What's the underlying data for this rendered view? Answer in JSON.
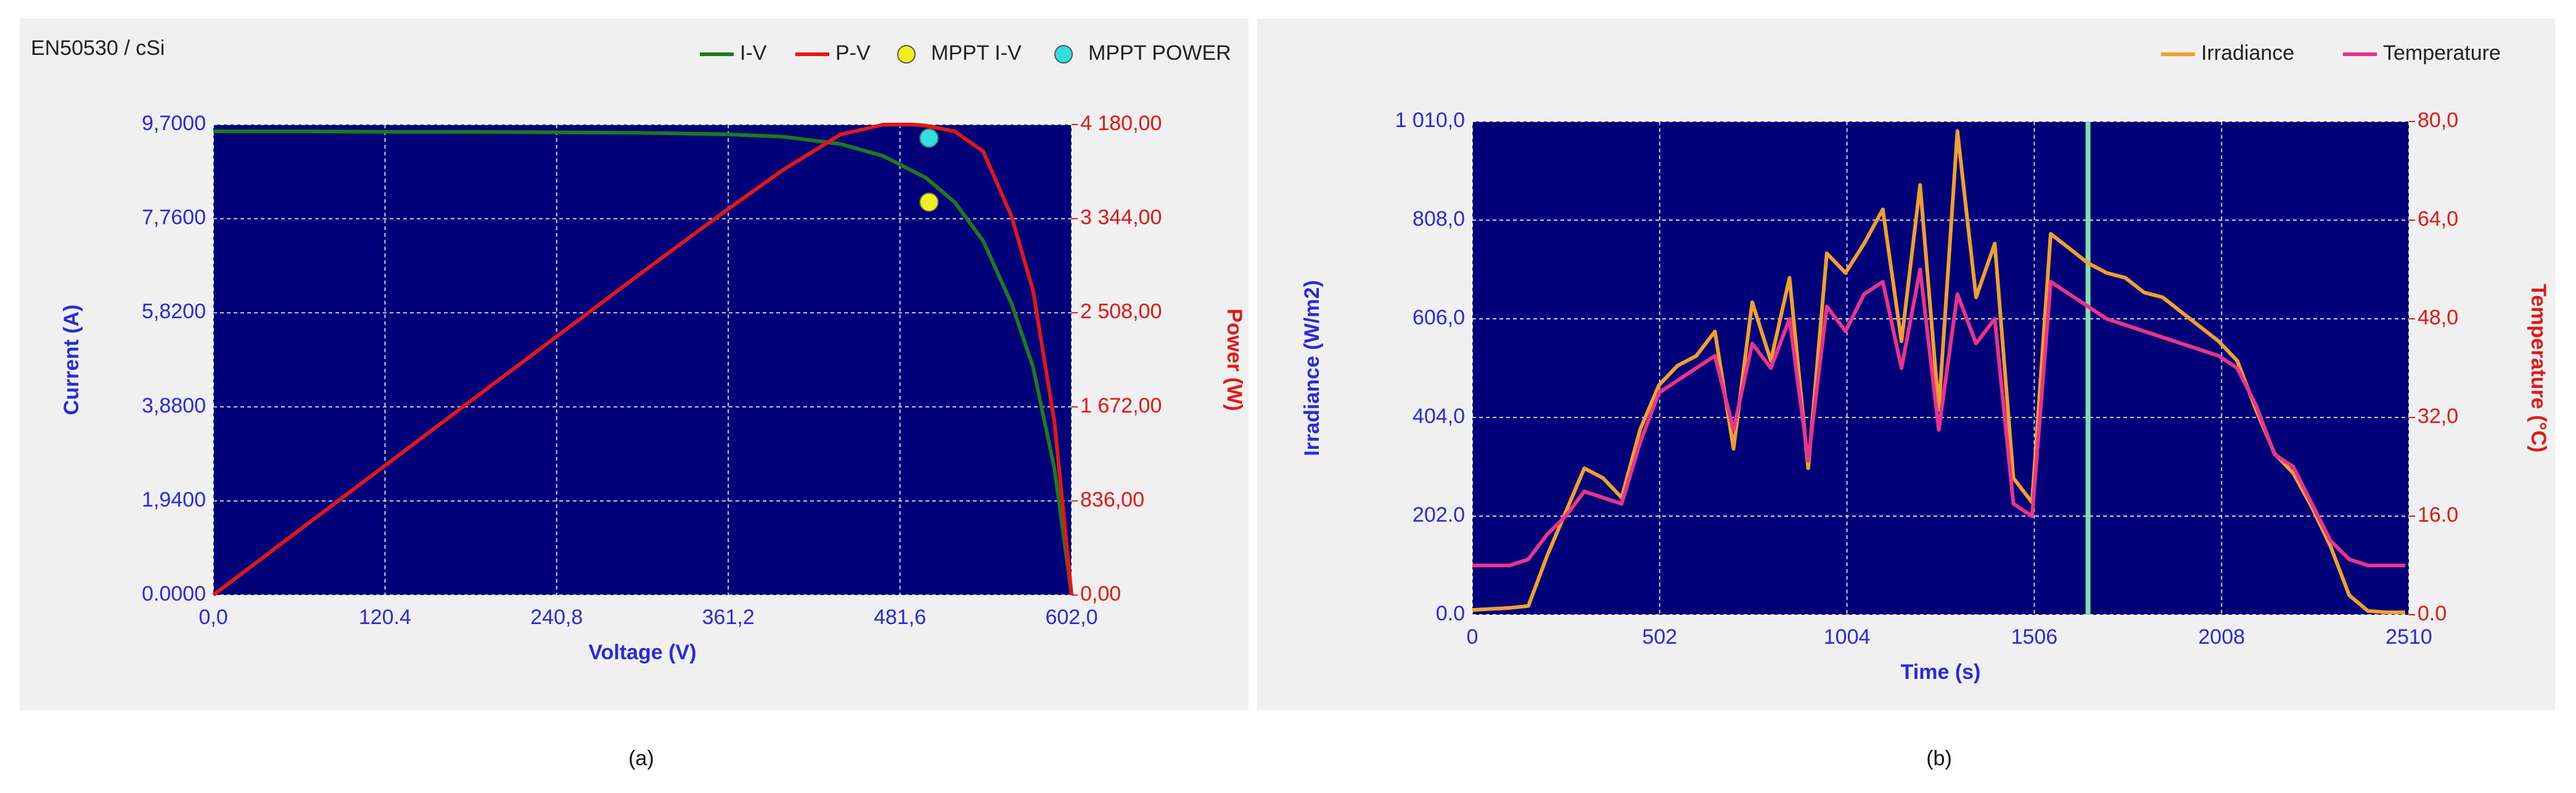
{
  "chart_data": [
    {
      "type": "line",
      "title": "EN50530 / cSi",
      "caption": "(a)",
      "x_label": "Voltage (V)",
      "y_label": "Current (A)",
      "y2_label": "Power (W)",
      "xlim": [
        0,
        602
      ],
      "ylim": [
        0,
        9.7
      ],
      "y2lim": [
        0,
        4180
      ],
      "xticks": [
        {
          "value": 0,
          "label": "0,0"
        },
        {
          "value": 120.4,
          "label": "120.4"
        },
        {
          "value": 240.8,
          "label": "240,8"
        },
        {
          "value": 361.2,
          "label": "361,2"
        },
        {
          "value": 481.6,
          "label": "481,6"
        },
        {
          "value": 602,
          "label": "602,0"
        }
      ],
      "yticks": [
        {
          "value": 0,
          "label": "0.0000"
        },
        {
          "value": 1.94,
          "label": "1,9400"
        },
        {
          "value": 3.88,
          "label": "3,8800"
        },
        {
          "value": 5.82,
          "label": "5,8200"
        },
        {
          "value": 7.76,
          "label": "7,7600"
        },
        {
          "value": 9.7,
          "label": "9,7000"
        }
      ],
      "y2ticks": [
        {
          "value": 0,
          "label": "0,00"
        },
        {
          "value": 836,
          "label": "836,00"
        },
        {
          "value": 1672,
          "label": "1 672,00"
        },
        {
          "value": 2508,
          "label": "2 508,00"
        },
        {
          "value": 3344,
          "label": "3 344,00"
        },
        {
          "value": 4180,
          "label": "4 180,00"
        }
      ],
      "grid": true,
      "legend": "top",
      "series": [
        {
          "name": "I-V",
          "color": "#1e7a1e",
          "style": "line",
          "x": [
            0,
            60,
            120,
            180,
            240,
            300,
            360,
            400,
            440,
            470,
            500,
            520,
            540,
            560,
            575,
            590,
            602
          ],
          "values": [
            9.56,
            9.56,
            9.55,
            9.55,
            9.54,
            9.53,
            9.5,
            9.45,
            9.3,
            9.05,
            8.6,
            8.1,
            7.3,
            6.0,
            4.7,
            2.6,
            0
          ]
        },
        {
          "name": "P-V",
          "color": "#e01818",
          "style": "line",
          "axis": "y2",
          "x": [
            0,
            60,
            120,
            180,
            240,
            300,
            360,
            400,
            440,
            470,
            490,
            500,
            520,
            540,
            560,
            575,
            590,
            602
          ],
          "values": [
            0,
            574,
            1146,
            1719,
            2290,
            2859,
            3420,
            3780,
            4092,
            4180,
            4180,
            4170,
            4120,
            3942,
            3360,
            2703,
            1534,
            0
          ]
        },
        {
          "name": "MPPT I-V",
          "color": "#f0f020",
          "style": "marker",
          "x": [
            502
          ],
          "values": [
            8.1
          ]
        },
        {
          "name": "MPPT POWER",
          "color": "#30e0e0",
          "style": "marker",
          "axis": "y2",
          "x": [
            502
          ],
          "values": [
            4060
          ]
        }
      ]
    },
    {
      "type": "line",
      "caption": "(b)",
      "x_label": "Time (s)",
      "y_label": "Irradiance (W/m2)",
      "y2_label": "Temperature (°C)",
      "xlim": [
        0,
        2510
      ],
      "ylim": [
        0,
        1010
      ],
      "y2lim": [
        0,
        80
      ],
      "xticks": [
        0,
        502,
        1004,
        1506,
        2008,
        2510
      ],
      "yticks": [
        {
          "value": 0,
          "label": "0.0"
        },
        {
          "value": 202,
          "label": "202.0"
        },
        {
          "value": 404,
          "label": "404,0"
        },
        {
          "value": 606,
          "label": "606,0"
        },
        {
          "value": 808,
          "label": "808,0"
        },
        {
          "value": 1010,
          "label": "1 010,0"
        }
      ],
      "y2ticks": [
        {
          "value": 0,
          "label": "0.0"
        },
        {
          "value": 16,
          "label": "16.0"
        },
        {
          "value": 32,
          "label": "32,0"
        },
        {
          "value": 48,
          "label": "48,0"
        },
        {
          "value": 64,
          "label": "64,0"
        },
        {
          "value": 80,
          "label": "80,0"
        }
      ],
      "grid": true,
      "legend": "top",
      "cursor_x": 1650,
      "cursor_color": "#7fe0a8",
      "series": [
        {
          "name": "Irradiance",
          "color": "#f0a030",
          "style": "line",
          "x": [
            0,
            50,
            100,
            150,
            200,
            250,
            300,
            350,
            400,
            450,
            500,
            550,
            600,
            650,
            700,
            750,
            800,
            850,
            900,
            950,
            1000,
            1050,
            1100,
            1150,
            1200,
            1250,
            1300,
            1350,
            1400,
            1450,
            1500,
            1550,
            1600,
            1650,
            1700,
            1750,
            1800,
            1850,
            1900,
            1950,
            2000,
            2050,
            2100,
            2150,
            2200,
            2250,
            2300,
            2350,
            2400,
            2450,
            2500
          ],
          "values": [
            10,
            12,
            14,
            18,
            120,
            210,
            300,
            280,
            240,
            380,
            470,
            510,
            530,
            580,
            340,
            640,
            520,
            690,
            300,
            740,
            700,
            760,
            830,
            560,
            880,
            420,
            990,
            650,
            760,
            280,
            230,
            780,
            750,
            720,
            700,
            690,
            660,
            650,
            620,
            590,
            560,
            520,
            420,
            330,
            290,
            220,
            140,
            40,
            8,
            5,
            5
          ]
        },
        {
          "name": "Temperature",
          "color": "#e8358a",
          "style": "line",
          "axis": "y2",
          "x": [
            0,
            50,
            100,
            150,
            200,
            250,
            300,
            350,
            400,
            450,
            500,
            550,
            600,
            650,
            700,
            750,
            800,
            850,
            900,
            950,
            1000,
            1050,
            1100,
            1150,
            1200,
            1250,
            1300,
            1350,
            1400,
            1450,
            1500,
            1550,
            1600,
            1650,
            1700,
            1750,
            1800,
            1850,
            1900,
            1950,
            2000,
            2050,
            2100,
            2150,
            2200,
            2250,
            2300,
            2350,
            2400,
            2450,
            2500
          ],
          "values": [
            8,
            8,
            8,
            9,
            13,
            16,
            20,
            19,
            18,
            28,
            36,
            38,
            40,
            42,
            30,
            44,
            40,
            48,
            25,
            50,
            46,
            52,
            54,
            40,
            56,
            30,
            52,
            44,
            48,
            18,
            16,
            54,
            52,
            50,
            48,
            47,
            46,
            45,
            44,
            43,
            42,
            40,
            34,
            26,
            24,
            18,
            12,
            9,
            8,
            8,
            8
          ]
        }
      ]
    }
  ]
}
